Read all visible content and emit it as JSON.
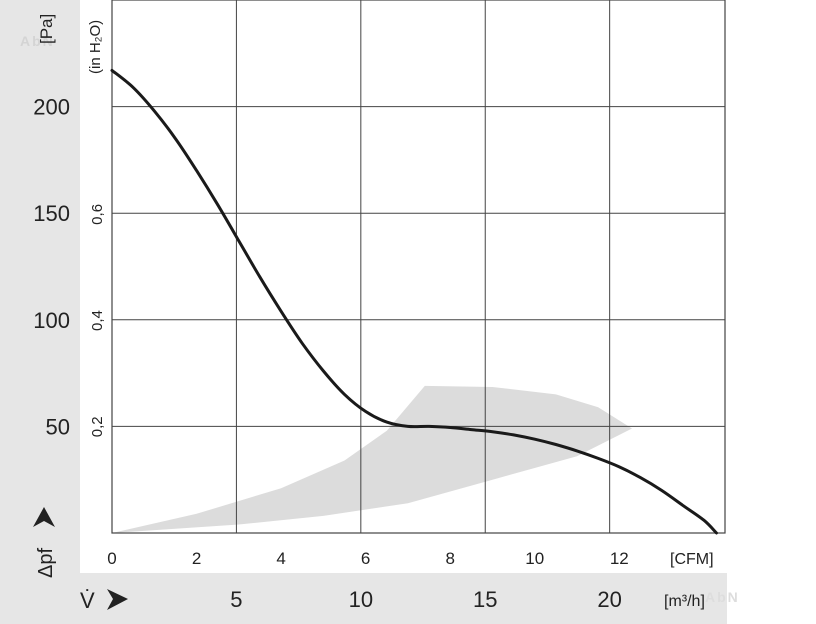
{
  "chart_data": {
    "type": "line",
    "title": "",
    "y_axis_left": {
      "unit": "[Pa]",
      "label": "Δpf",
      "ticks": [
        "50",
        "100",
        "150",
        "200"
      ],
      "tick_values": [
        50,
        100,
        150,
        200
      ],
      "range": [
        0,
        250
      ]
    },
    "y_axis_inner": {
      "unit": "(in H₂O)",
      "ticks": [
        "0,2",
        "0,4",
        "0,6"
      ],
      "tick_values": [
        0.2,
        0.4,
        0.6
      ]
    },
    "x_axis_cfm": {
      "unit": "[CFM]",
      "ticks": [
        "0",
        "2",
        "4",
        "6",
        "8",
        "10",
        "12"
      ],
      "tick_values": [
        0,
        2,
        4,
        6,
        8,
        10,
        12
      ],
      "range": [
        0,
        14.5
      ]
    },
    "x_axis_m3h": {
      "label": "V̇",
      "unit": "[m³/h]",
      "ticks": [
        "5",
        "10",
        "15",
        "20"
      ],
      "tick_values": [
        5,
        10,
        15,
        20
      ]
    },
    "grid": true,
    "series": [
      {
        "values_cfm_pa": [
          [
            0,
            217
          ],
          [
            0.5,
            209
          ],
          [
            1,
            198
          ],
          [
            1.5,
            185
          ],
          [
            2,
            170
          ],
          [
            2.5,
            154
          ],
          [
            3,
            137
          ],
          [
            3.5,
            120
          ],
          [
            4,
            104
          ],
          [
            4.5,
            89
          ],
          [
            5,
            76
          ],
          [
            5.5,
            65
          ],
          [
            6,
            57
          ],
          [
            6.5,
            52
          ],
          [
            7,
            50
          ],
          [
            7.5,
            50
          ],
          [
            8,
            49.5
          ],
          [
            8.5,
            48.5
          ],
          [
            9,
            47.5
          ],
          [
            9.5,
            46
          ],
          [
            10,
            44
          ],
          [
            10.5,
            41.5
          ],
          [
            11,
            38.5
          ],
          [
            11.5,
            35
          ],
          [
            12,
            31
          ],
          [
            12.5,
            26
          ],
          [
            13,
            20
          ],
          [
            13.5,
            13
          ],
          [
            14,
            6
          ],
          [
            14.3,
            0
          ]
        ]
      }
    ],
    "operating_region": {
      "upper": [
        [
          0,
          0
        ],
        [
          2,
          9
        ],
        [
          4,
          21
        ],
        [
          5.5,
          34
        ],
        [
          6.5,
          48
        ],
        [
          7.4,
          69
        ],
        [
          9,
          68.5
        ],
        [
          10.5,
          65
        ],
        [
          11.5,
          59
        ],
        [
          12.3,
          49
        ]
      ],
      "lower": [
        [
          12.3,
          49
        ],
        [
          11,
          36
        ],
        [
          9,
          25
        ],
        [
          7,
          14
        ],
        [
          5,
          8
        ],
        [
          3,
          4
        ],
        [
          0,
          0
        ]
      ],
      "color": "#dcdcdc"
    },
    "colors": {
      "curve": "#1a1a1a",
      "grid": "#444444",
      "panel": "#e6e6e6"
    },
    "watermark": "AbN automation"
  }
}
